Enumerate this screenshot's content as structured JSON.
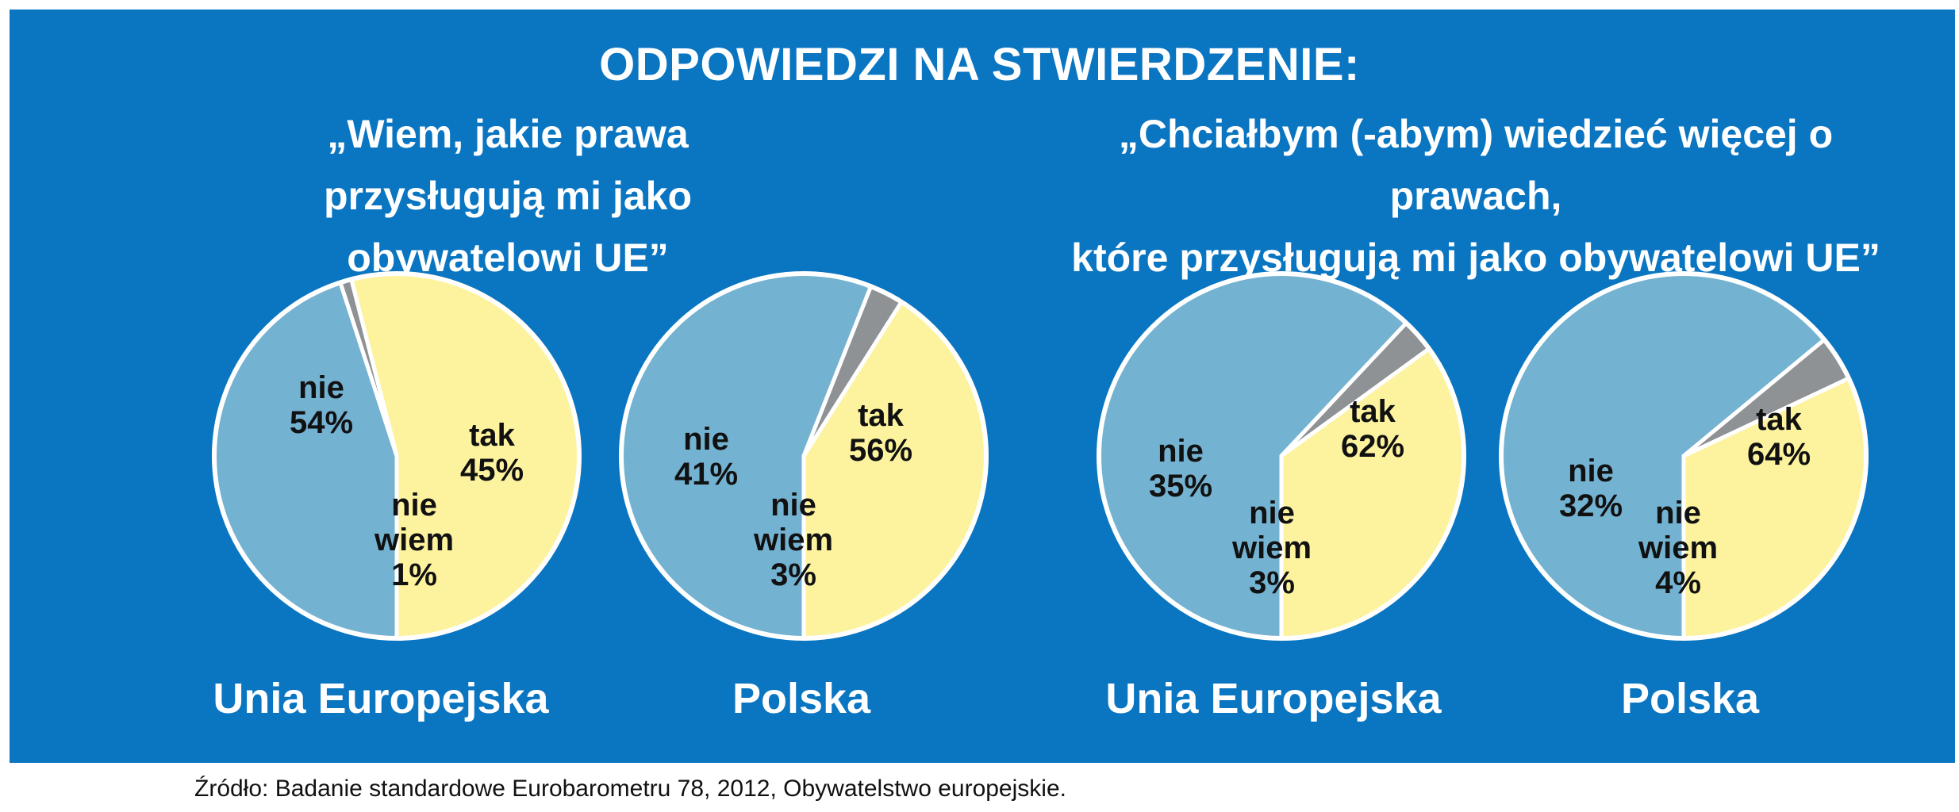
{
  "title": "ODPOWIEDZI NA STWIERDZENIE:",
  "source": "Źródło: Badanie standardowe Eurobarometru 78, 2012, Obywatelstwo europejskie.",
  "colors": {
    "background": "#0a75c1",
    "tak": "#74b2d1",
    "nie": "#fdf39f",
    "nie_wiem": "#8f9295",
    "outline": "#ffffff"
  },
  "chart_data": [
    {
      "type": "pie",
      "title": "„Wiem, jakie prawa przysługują mi jako obywatelowi UE”",
      "region": "Unia Europejska",
      "slices": [
        {
          "label": "tak",
          "value": 45
        },
        {
          "label": "nie wiem",
          "value": 1
        },
        {
          "label": "nie",
          "value": 54
        }
      ]
    },
    {
      "type": "pie",
      "title": "„Wiem, jakie prawa przysługują mi jako obywatelowi UE”",
      "region": "Polska",
      "slices": [
        {
          "label": "tak",
          "value": 56
        },
        {
          "label": "nie wiem",
          "value": 3
        },
        {
          "label": "nie",
          "value": 41
        }
      ]
    },
    {
      "type": "pie",
      "title": "„Chciałbym (-abym) wiedzieć więcej o prawach, które przysługują mi jako obywatelowi UE”",
      "region": "Unia Europejska",
      "slices": [
        {
          "label": "tak",
          "value": 62
        },
        {
          "label": "nie wiem",
          "value": 3
        },
        {
          "label": "nie",
          "value": 35
        }
      ]
    },
    {
      "type": "pie",
      "title": "„Chciałbym (-abym) wiedzieć więcej o prawach, które przysługują mi jako obywatelowi UE”",
      "region": "Polska",
      "slices": [
        {
          "label": "tak",
          "value": 64
        },
        {
          "label": "nie wiem",
          "value": 4
        },
        {
          "label": "nie",
          "value": 32
        }
      ]
    }
  ],
  "subtitles": {
    "left_line1": "„Wiem, jakie prawa przysługują mi jako",
    "left_line2": "obywatelowi UE”",
    "right_line1": "„Chciałbym  (-abym) wiedzieć więcej o prawach,",
    "right_line2": "które przysługują mi jako obywatelowi UE”"
  }
}
